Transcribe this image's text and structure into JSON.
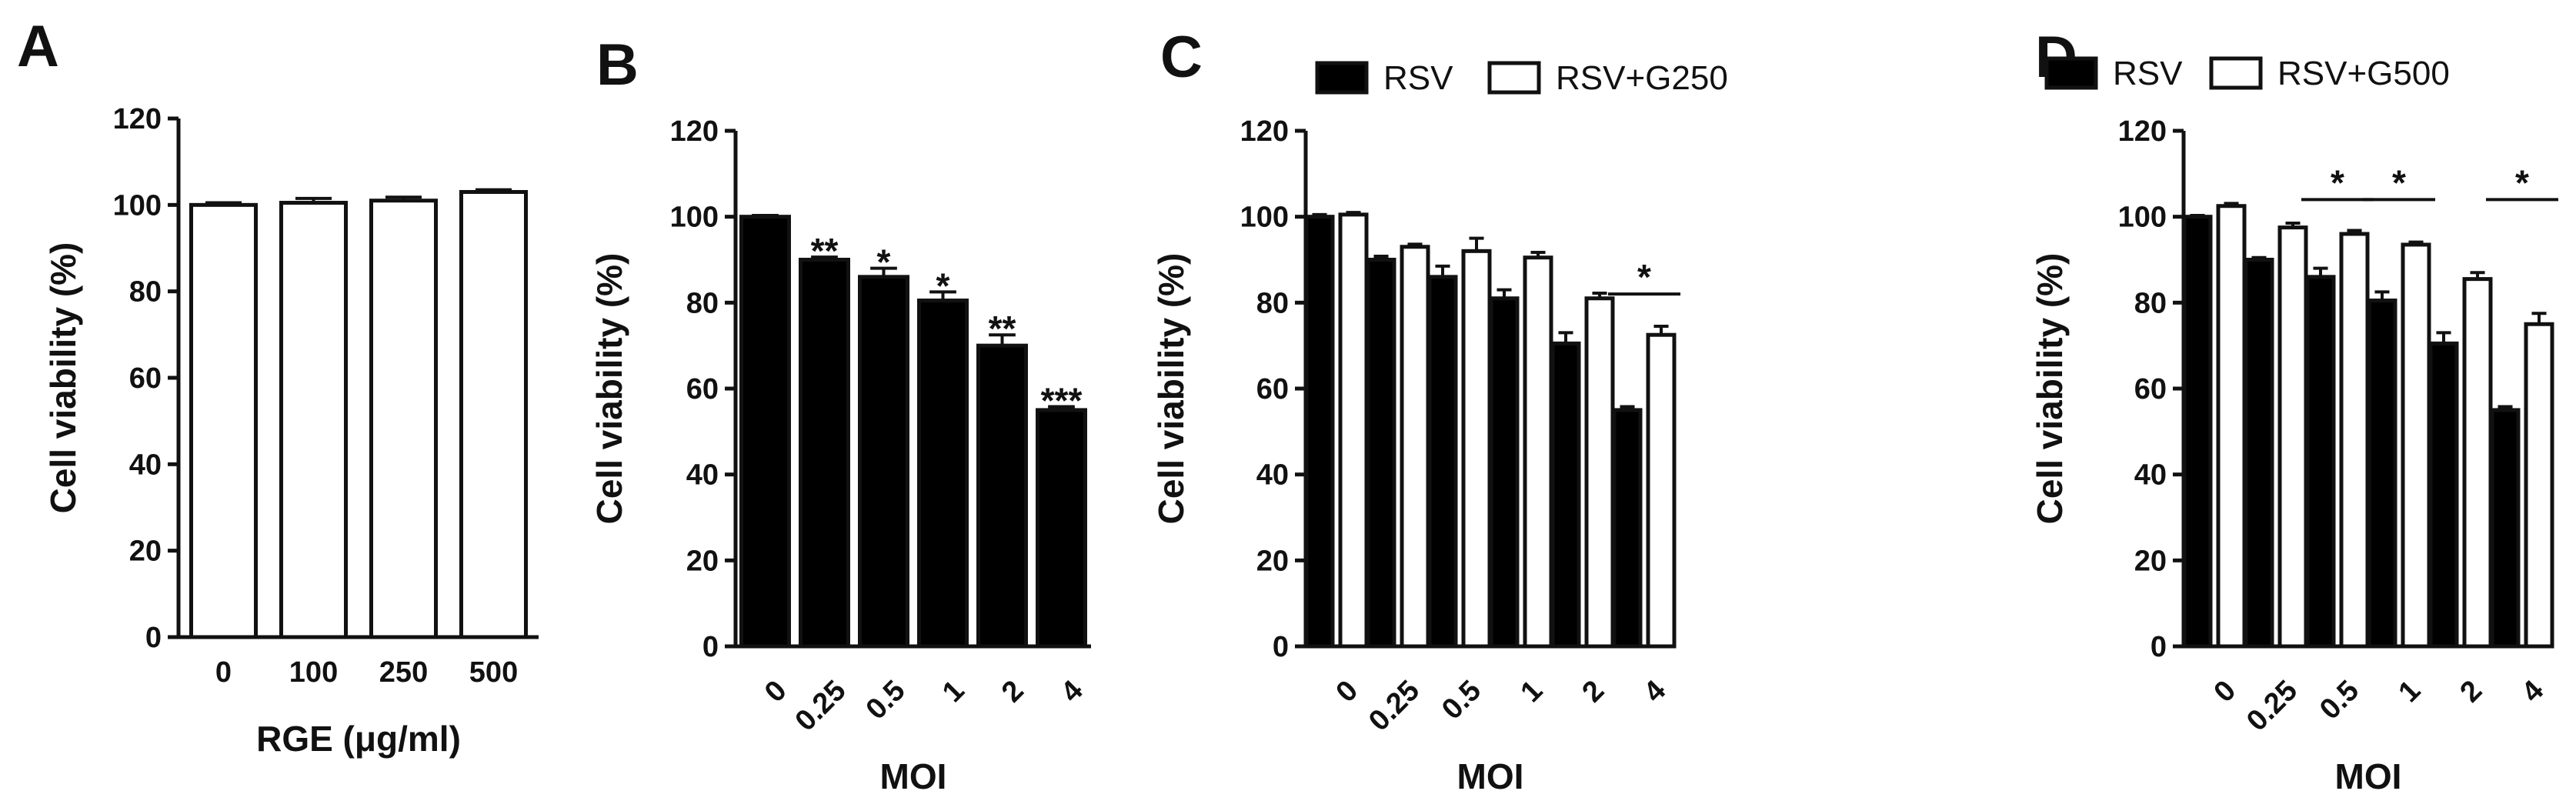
{
  "chart_data": [
    {
      "panel": "A",
      "type": "bar",
      "categories": [
        "0",
        "100",
        "250",
        "500"
      ],
      "series": [
        {
          "name": "RGE",
          "color": "#ffffff",
          "values": [
            100,
            100.5,
            101,
            103
          ],
          "errors": [
            0.5,
            1,
            0.8,
            0.5
          ]
        }
      ],
      "ylabel": "Cell viability (%)",
      "xlabel": "RGE (μg/ml)",
      "ylim": [
        0,
        120
      ],
      "yticks": [
        "0",
        "20",
        "40",
        "60",
        "80",
        "100",
        "120"
      ],
      "annotations": []
    },
    {
      "panel": "B",
      "type": "bar",
      "categories": [
        "0",
        "0.25",
        "0.5",
        "1",
        "2",
        "4"
      ],
      "series": [
        {
          "name": "RSV",
          "color": "#000000",
          "values": [
            100,
            90,
            86,
            80.5,
            70,
            55
          ],
          "errors": [
            0.3,
            0.6,
            2,
            2,
            2.5,
            0.8
          ]
        }
      ],
      "ylabel": "Cell viability (%)",
      "xlabel": "MOI",
      "ylim": [
        0,
        120
      ],
      "yticks": [
        "0",
        "20",
        "40",
        "60",
        "80",
        "100",
        "120"
      ],
      "annotations": [
        {
          "category": 1,
          "text": "**"
        },
        {
          "category": 2,
          "text": "*"
        },
        {
          "category": 3,
          "text": "*"
        },
        {
          "category": 4,
          "text": "**"
        },
        {
          "category": 5,
          "text": "***"
        }
      ]
    },
    {
      "panel": "C",
      "type": "bar",
      "categories": [
        "0",
        "0.25",
        "0.5",
        "1",
        "2",
        "4"
      ],
      "series": [
        {
          "name": "RSV",
          "color": "#000000",
          "values": [
            100,
            90,
            86,
            81,
            70.5,
            55
          ],
          "errors": [
            0.5,
            0.8,
            2.5,
            2,
            2.5,
            0.8
          ]
        },
        {
          "name": "RSV+G250",
          "color": "#ffffff",
          "values": [
            100.5,
            93,
            92,
            90.5,
            81,
            72.5
          ],
          "errors": [
            0.5,
            0.6,
            3,
            1.2,
            1.2,
            2
          ]
        }
      ],
      "ylabel": "Cell viability (%)",
      "xlabel": "MOI",
      "ylim": [
        0,
        120
      ],
      "yticks": [
        "0",
        "20",
        "40",
        "60",
        "80",
        "100",
        "120"
      ],
      "annotations": [
        {
          "category": 5,
          "text": "*",
          "y": 82
        }
      ]
    },
    {
      "panel": "D",
      "type": "bar",
      "categories": [
        "0",
        "0.25",
        "0.5",
        "1",
        "2",
        "4"
      ],
      "series": [
        {
          "name": "RSV",
          "color": "#000000",
          "values": [
            100,
            90,
            86,
            80.5,
            70.5,
            55
          ],
          "errors": [
            0.3,
            0.5,
            2,
            2,
            2.5,
            0.8
          ]
        },
        {
          "name": "RSV+G500",
          "color": "#ffffff",
          "values": [
            102.5,
            97.5,
            96,
            93.5,
            85.5,
            75
          ],
          "errors": [
            0.6,
            1,
            0.8,
            0.6,
            1.5,
            2.5
          ]
        }
      ],
      "ylabel": "Cell viability (%)",
      "xlabel": "MOI",
      "ylim": [
        0,
        120
      ],
      "yticks": [
        "0",
        "20",
        "40",
        "60",
        "80",
        "100",
        "120"
      ],
      "annotations": [
        {
          "category": 2,
          "text": "*",
          "y": 104
        },
        {
          "category": 3,
          "text": "*",
          "y": 104
        },
        {
          "category": 5,
          "text": "*",
          "y": 104
        }
      ]
    }
  ]
}
